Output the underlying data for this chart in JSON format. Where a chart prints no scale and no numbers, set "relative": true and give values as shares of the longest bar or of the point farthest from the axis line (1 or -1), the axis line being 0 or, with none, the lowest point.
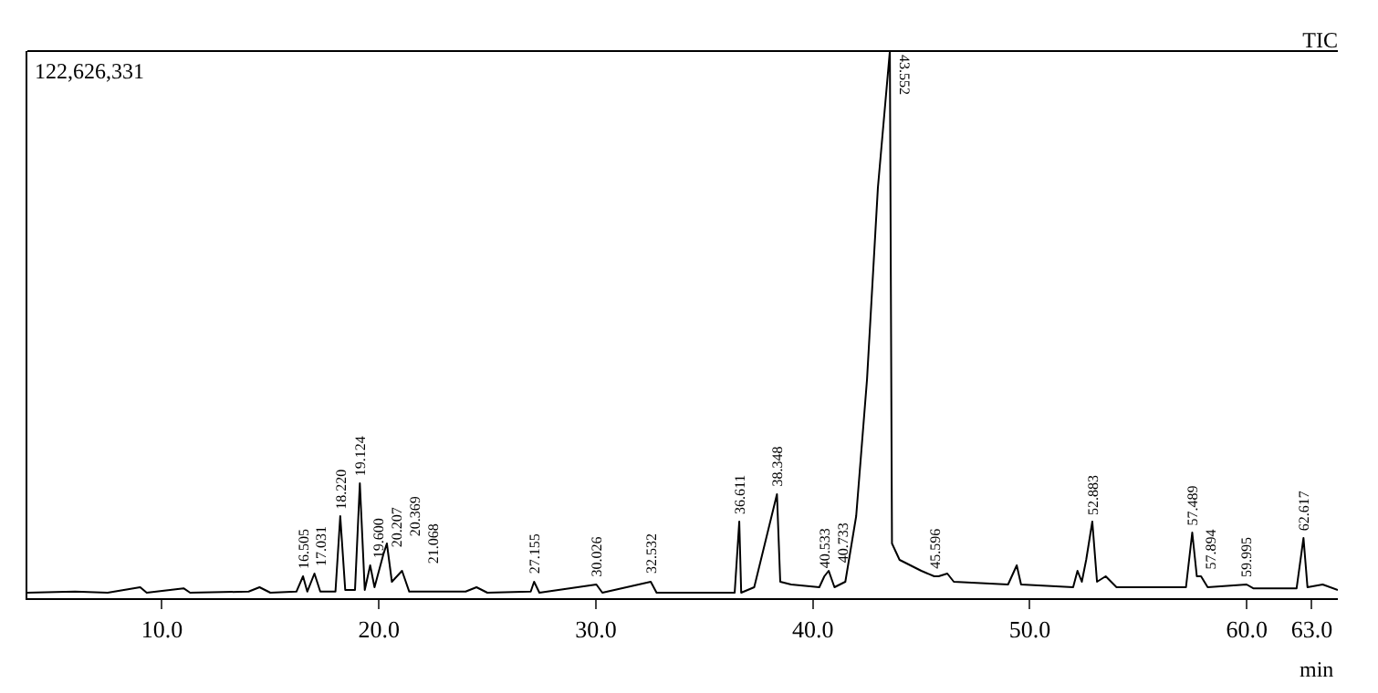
{
  "chart_data": {
    "type": "line",
    "title": "TIC",
    "xlabel": "min",
    "relative": true,
    "marker": "none",
    "line_style": "solid",
    "x": [
      3.8,
      6,
      7.5,
      9,
      9.3,
      11,
      11.3,
      14,
      14.5,
      15,
      16.2,
      16.505,
      16.7,
      17.031,
      17.3,
      18.0,
      18.22,
      18.45,
      18.9,
      19.124,
      19.35,
      19.6,
      19.8,
      20.207,
      20.369,
      20.6,
      21.068,
      21.4,
      24,
      24.5,
      25,
      27,
      27.155,
      27.4,
      30.026,
      30.3,
      32.532,
      32.8,
      36.4,
      36.611,
      36.7,
      37.3,
      38.348,
      38.5,
      39,
      40.3,
      40.533,
      40.733,
      41,
      41.5,
      42,
      42.5,
      43,
      43.552,
      43.65,
      44,
      45,
      45.596,
      45.8,
      46.2,
      46.5,
      49,
      49.4,
      49.6,
      52,
      52.2,
      52.4,
      52.6,
      52.883,
      53.1,
      53.5,
      54,
      57.2,
      57.489,
      57.7,
      57.894,
      58.2,
      59.995,
      60.3,
      62.3,
      62.617,
      62.8,
      63.5,
      64.2
    ],
    "series": [
      {
        "color": "#000000",
        "values": [
          0.01,
          0.012,
          0.01,
          0.02,
          0.01,
          0.018,
          0.01,
          0.012,
          0.02,
          0.01,
          0.012,
          0.04,
          0.012,
          0.045,
          0.012,
          0.012,
          0.15,
          0.015,
          0.015,
          0.21,
          0.015,
          0.06,
          0.02,
          0.08,
          0.1,
          0.03,
          0.05,
          0.012,
          0.012,
          0.02,
          0.01,
          0.012,
          0.03,
          0.01,
          0.025,
          0.01,
          0.03,
          0.01,
          0.01,
          0.14,
          0.01,
          0.02,
          0.19,
          0.03,
          0.025,
          0.02,
          0.04,
          0.05,
          0.02,
          0.03,
          0.15,
          0.4,
          0.75,
          1,
          0.1,
          0.07,
          0.05,
          0.04,
          0.04,
          0.045,
          0.03,
          0.025,
          0.06,
          0.025,
          0.02,
          0.05,
          0.03,
          0.07,
          0.14,
          0.03,
          0.04,
          0.02,
          0.02,
          0.12,
          0.04,
          0.04,
          0.02,
          0.025,
          0.018,
          0.018,
          0.11,
          0.02,
          0.025,
          0.015
        ]
      }
    ],
    "xlim": [
      3.8,
      64.2
    ],
    "xticks": [
      {
        "value": 10,
        "label": "10.0"
      },
      {
        "value": 20,
        "label": "20.0"
      },
      {
        "value": 30,
        "label": "30.0"
      },
      {
        "value": 40,
        "label": "40.0"
      },
      {
        "value": 50,
        "label": "50.0"
      },
      {
        "value": 60,
        "label": "60.0"
      },
      {
        "value": 63,
        "label": "63.0"
      }
    ],
    "annotations": [
      "122,626,331",
      {
        "text": "16.505",
        "x": 16.505,
        "y": 0.04
      },
      {
        "text": "17.031",
        "x": 17.031,
        "y": 0.045
      },
      {
        "text": "18.220",
        "x": 18.22,
        "y": 0.15
      },
      {
        "text": "19.124",
        "x": 19.124,
        "y": 0.21
      },
      {
        "text": "19.600",
        "x": 19.6,
        "y": 0.06
      },
      {
        "text": "20.207",
        "x": 20.207,
        "y": 0.08
      },
      {
        "text": "20.369",
        "x": 20.369,
        "y": 0.1
      },
      {
        "text": "21.068",
        "x": 21.068,
        "y": 0.05
      },
      {
        "text": "27.155",
        "x": 27.155,
        "y": 0.03
      },
      {
        "text": "30.026",
        "x": 30.026,
        "y": 0.025
      },
      {
        "text": "32.532",
        "x": 32.532,
        "y": 0.03
      },
      {
        "text": "36.611",
        "x": 36.611,
        "y": 0.14
      },
      {
        "text": "38.348",
        "x": 38.348,
        "y": 0.19
      },
      {
        "text": "40.533",
        "x": 40.533,
        "y": 0.04
      },
      {
        "text": "40.733",
        "x": 40.733,
        "y": 0.05
      },
      {
        "text": "43.552",
        "x": 43.552,
        "y": 1
      },
      {
        "text": "45.596",
        "x": 45.596,
        "y": 0.04
      },
      {
        "text": "52.883",
        "x": 52.883,
        "y": 0.14
      },
      {
        "text": "57.489",
        "x": 57.489,
        "y": 0.12
      },
      {
        "text": "57.894",
        "x": 57.894,
        "y": 0.04
      },
      {
        "text": "59.995",
        "x": 59.995,
        "y": 0.025
      },
      {
        "text": "62.617",
        "x": 62.617,
        "y": 0.11
      }
    ]
  }
}
